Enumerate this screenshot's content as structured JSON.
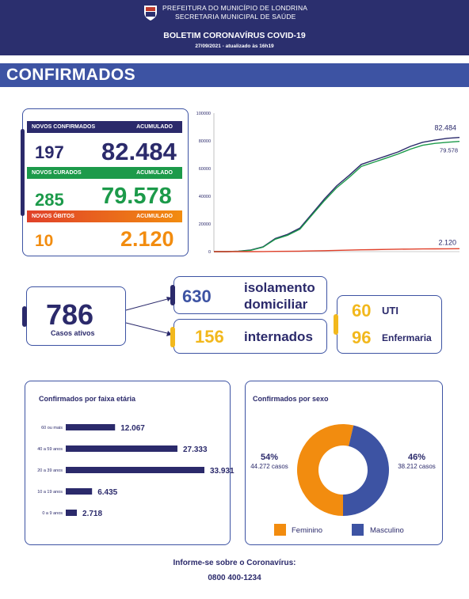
{
  "header": {
    "line1": "PREFEITURA DO MUNICÍPIO DE LONDRINA",
    "line2": "SECRETARIA MUNICIPAL DE SAÚDE",
    "title": "BOLETIM CORONAVÍRUS COVID-19",
    "date": "27/09/2021 - atualizado às 16h19"
  },
  "section_title": "CONFIRMADOS",
  "kpis": {
    "confirmados": {
      "label": "NOVOS CONFIRMADOS",
      "acc_label": "ACUMULADO",
      "new": "197",
      "total": "82.484"
    },
    "curados": {
      "label": "NOVOS CURADOS",
      "acc_label": "ACUMULADO",
      "new": "285",
      "total": "79.578"
    },
    "obitos": {
      "label": "NOVOS ÓBITOS",
      "acc_label": "ACUMULADO",
      "new": "10",
      "total": "2.120"
    }
  },
  "casos_ativos": {
    "total": "786",
    "label": "Casos ativos",
    "isolamento_value": "630",
    "isolamento_label1": "isolamento",
    "isolamento_label2": "domiciliar",
    "internados_value": "156",
    "internados_label": "internados",
    "uti_value": "60",
    "uti_label": "UTI",
    "enfermaria_value": "96",
    "enfermaria_label": "Enfermaria"
  },
  "colors": {
    "navy": "#2b2a6b",
    "header": "#2b2f6e",
    "blue": "#3d53a3",
    "green": "#1c9a4a",
    "orange": "#f28c0f",
    "red": "#e0402a",
    "yellow": "#f2b81d",
    "masculino": "#3d53a3",
    "feminino": "#f28c0f"
  },
  "chart_data": [
    {
      "type": "line",
      "ylim": [
        0,
        100000
      ],
      "yticks": [
        "0",
        "20000",
        "40000",
        "60000",
        "80000",
        "100000"
      ],
      "x": [
        0,
        1,
        2,
        3,
        4,
        5,
        6,
        7,
        8,
        9,
        10,
        11,
        12,
        13,
        14,
        15,
        16,
        17,
        18,
        19,
        20
      ],
      "series": [
        {
          "values": [
            0,
            0,
            300,
            1200,
            3500,
            9500,
            12500,
            17000,
            27500,
            38000,
            47500,
            55000,
            63000,
            66000,
            69000,
            72000,
            76000,
            79000,
            80500,
            81800,
            82484
          ],
          "end_label": "82.484",
          "color": "#2b2a6b"
        },
        {
          "values": [
            0,
            0,
            250,
            1000,
            3200,
            9000,
            11800,
            16200,
            26500,
            36800,
            46200,
            53500,
            61500,
            64500,
            67500,
            70500,
            74000,
            76800,
            78200,
            79000,
            79578
          ],
          "end_label": "79.578",
          "color": "#1c9a4a"
        },
        {
          "values": [
            0,
            0,
            5,
            20,
            60,
            150,
            220,
            320,
            500,
            700,
            900,
            1100,
            1300,
            1450,
            1600,
            1750,
            1850,
            1950,
            2020,
            2080,
            2120
          ],
          "end_label": "2.120",
          "color": "#e0402a"
        }
      ]
    },
    {
      "type": "bar",
      "title": "Confirmados por faixa etária",
      "categories": [
        "60 ou mais",
        "40 a 59 anos",
        "20 a 39 anos",
        "10 a 19 anos",
        "0 a 9 anos"
      ],
      "values": [
        12067,
        27333,
        33931,
        6435,
        2718
      ],
      "value_labels": [
        "12.067",
        "27.333",
        "33.931",
        "6.435",
        "2.718"
      ]
    },
    {
      "type": "pie",
      "title": "Confirmados por sexo",
      "categories": [
        "Feminino",
        "Masculino"
      ],
      "values": [
        44272,
        38212
      ],
      "percent_labels": [
        "54%",
        "46%"
      ],
      "count_labels": [
        "44.272 casos",
        "38.212 casos"
      ]
    }
  ],
  "footer": {
    "line1": "Informe-se sobre o Coronavírus:",
    "line2": "0800 400-1234"
  }
}
